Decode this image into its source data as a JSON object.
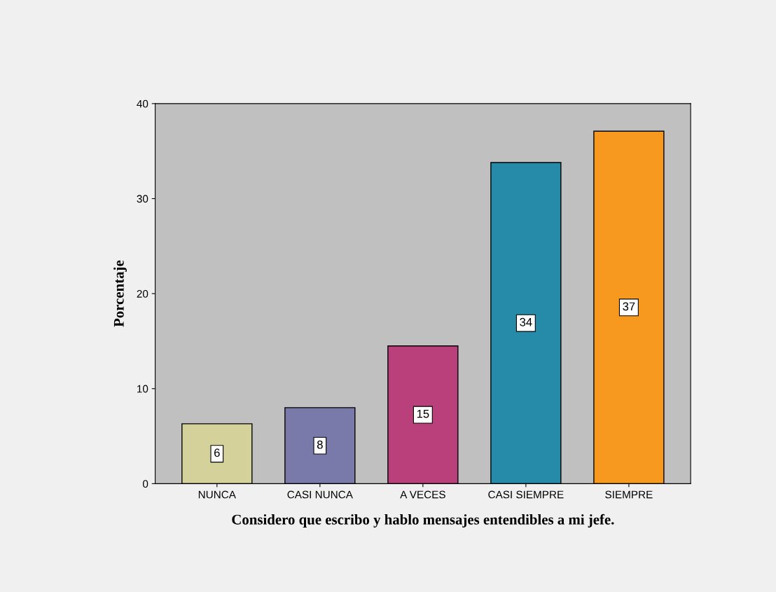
{
  "chart_data": {
    "type": "bar",
    "xlabel": "Considero que escribo y hablo mensajes entendibles a mi jefe.",
    "ylabel": "Porcentaje",
    "categories": [
      "NUNCA",
      "CASI NUNCA",
      "A VECES",
      "CASI SIEMPRE",
      "SIEMPRE"
    ],
    "values": [
      6.3,
      8.0,
      14.5,
      33.8,
      37.1
    ],
    "value_labels": [
      "6",
      "8",
      "15",
      "34",
      "37"
    ],
    "colors": [
      "#d5d19b",
      "#7a7aaa",
      "#b9407a",
      "#268aa9",
      "#f7991f"
    ],
    "ylim": [
      0,
      40
    ],
    "yticks": [
      0,
      10,
      20,
      30,
      40
    ],
    "grid": false,
    "legend": false
  }
}
